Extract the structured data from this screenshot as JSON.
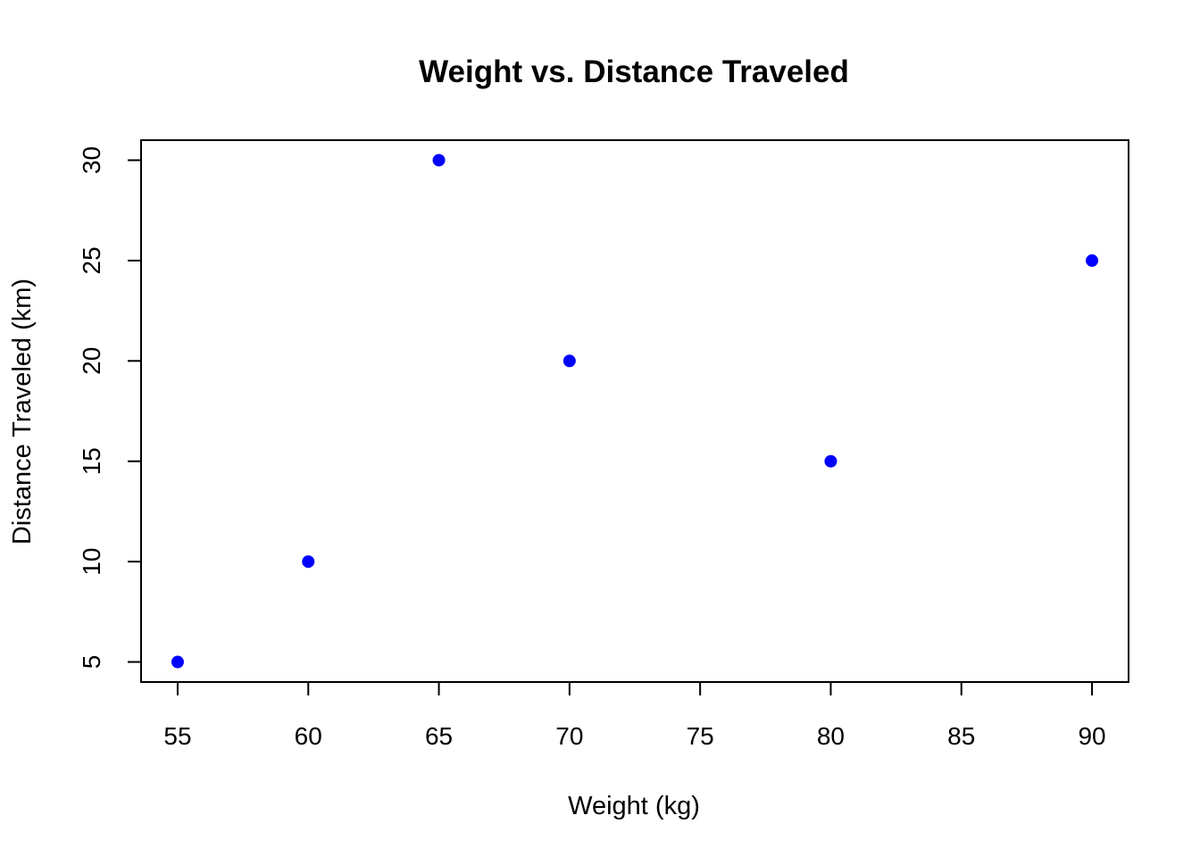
{
  "chart_data": {
    "type": "scatter",
    "title": "Weight vs. Distance Traveled",
    "xlabel": "Weight (kg)",
    "ylabel": "Distance Traveled (km)",
    "x": [
      55,
      60,
      65,
      70,
      80,
      90
    ],
    "y": [
      5,
      10,
      30,
      20,
      15,
      25
    ],
    "xlim": [
      53.6,
      91.4
    ],
    "ylim": [
      4.0,
      31.0
    ],
    "xticks": [
      55,
      60,
      65,
      70,
      75,
      80,
      85,
      90
    ],
    "yticks": [
      5,
      10,
      15,
      20,
      25,
      30
    ],
    "grid": false,
    "point_color": "#0000ff",
    "frame_color": "#000000"
  }
}
